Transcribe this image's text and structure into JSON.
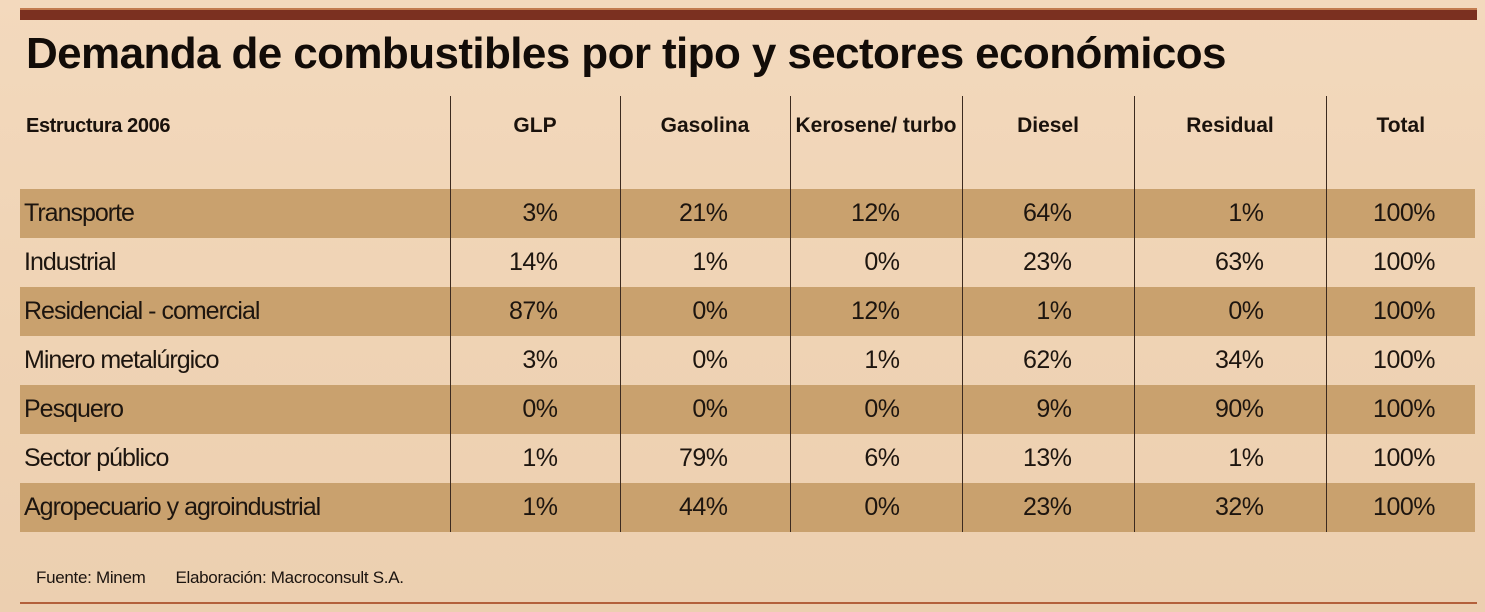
{
  "title": "Demanda de combustibles por tipo y sectores económicos",
  "chart_data": {
    "type": "table",
    "title": "Demanda de combustibles por tipo y sectores económicos",
    "stub_header": "Estructura 2006",
    "columns": [
      "GLP",
      "Gasolina",
      "Kerosene/ turbo",
      "Diesel",
      "Residual",
      "Total"
    ],
    "rows": [
      {
        "sector": "Transporte",
        "values": [
          "3%",
          "21%",
          "12%",
          "64%",
          "1%",
          "100%"
        ]
      },
      {
        "sector": "Industrial",
        "values": [
          "14%",
          "1%",
          "0%",
          "23%",
          "63%",
          "100%"
        ]
      },
      {
        "sector": "Residencial - comercial",
        "values": [
          "87%",
          "0%",
          "12%",
          "1%",
          "0%",
          "100%"
        ]
      },
      {
        "sector": "Minero metalúrgico",
        "values": [
          "3%",
          "0%",
          "1%",
          "62%",
          "34%",
          "100%"
        ]
      },
      {
        "sector": "Pesquero",
        "values": [
          "0%",
          "0%",
          "0%",
          "9%",
          "90%",
          "100%"
        ]
      },
      {
        "sector": "Sector público",
        "values": [
          "1%",
          "79%",
          "6%",
          "13%",
          "1%",
          "100%"
        ]
      },
      {
        "sector": "Agropecuario y agroindustrial",
        "values": [
          "1%",
          "44%",
          "0%",
          "23%",
          "32%",
          "100%"
        ]
      }
    ],
    "band_color": "#c9a16e"
  },
  "footer": {
    "source": "Fuente: Minem",
    "elaboration": "Elaboración: Macroconsult S.A."
  }
}
